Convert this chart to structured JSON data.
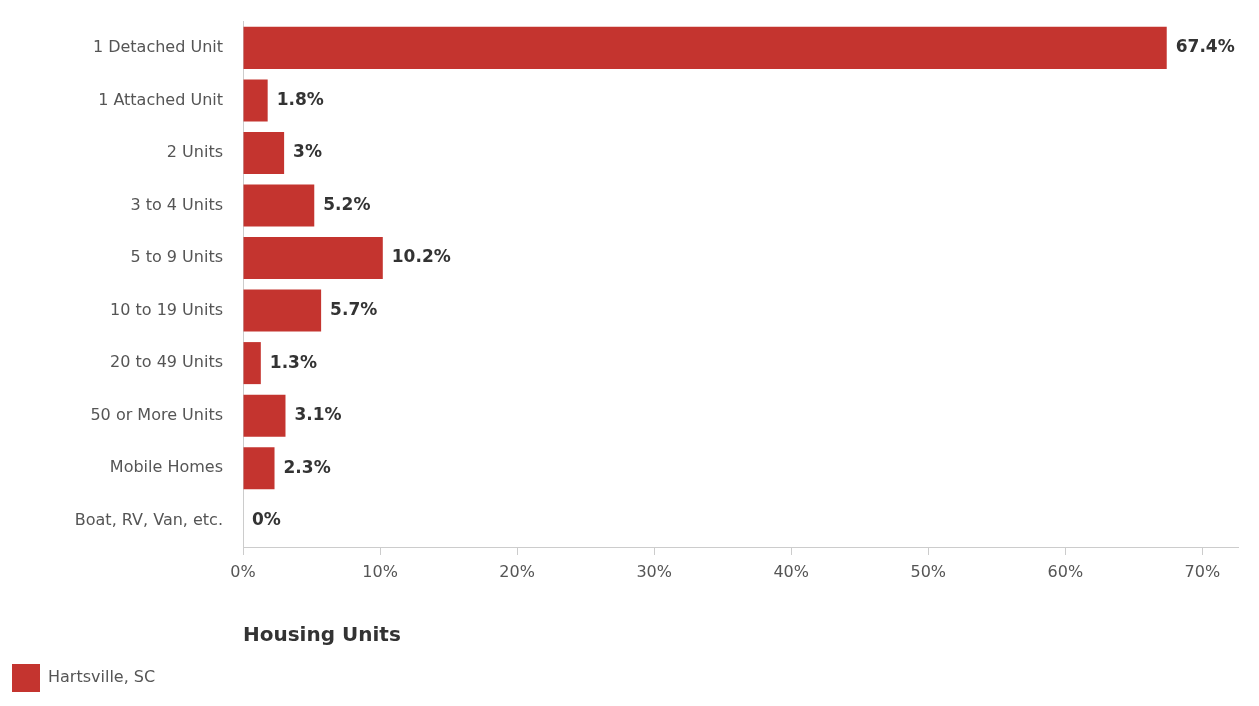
{
  "chart_data": {
    "type": "bar",
    "orientation": "horizontal",
    "xlabel": "Housing Units",
    "categories": [
      "1 Detached Unit",
      "1 Attached Unit",
      "2 Units",
      "3 to 4 Units",
      "5 to 9 Units",
      "10 to 19 Units",
      "20 to 49 Units",
      "50 or More Units",
      "Mobile Homes",
      "Boat, RV, Van, etc."
    ],
    "series": [
      {
        "name": "Hartsville, SC",
        "color": "#c4342f",
        "values": [
          67.4,
          1.8,
          3,
          5.2,
          10.2,
          5.7,
          1.3,
          3.1,
          2.3,
          0
        ],
        "value_labels": [
          "67.4%",
          "1.8%",
          "3%",
          "5.2%",
          "10.2%",
          "5.7%",
          "1.3%",
          "3.1%",
          "2.3%",
          "0%"
        ]
      }
    ],
    "xlim": [
      0,
      72.6
    ],
    "xticks": [
      {
        "value": 0,
        "label": "0%"
      },
      {
        "value": 10,
        "label": "10%"
      },
      {
        "value": 20,
        "label": "20%"
      },
      {
        "value": 30,
        "label": "30%"
      },
      {
        "value": 40,
        "label": "40%"
      },
      {
        "value": 50,
        "label": "50%"
      },
      {
        "value": 60,
        "label": "60%"
      },
      {
        "value": 70,
        "label": "70%"
      }
    ],
    "grid": false,
    "legend": "bottom left"
  }
}
